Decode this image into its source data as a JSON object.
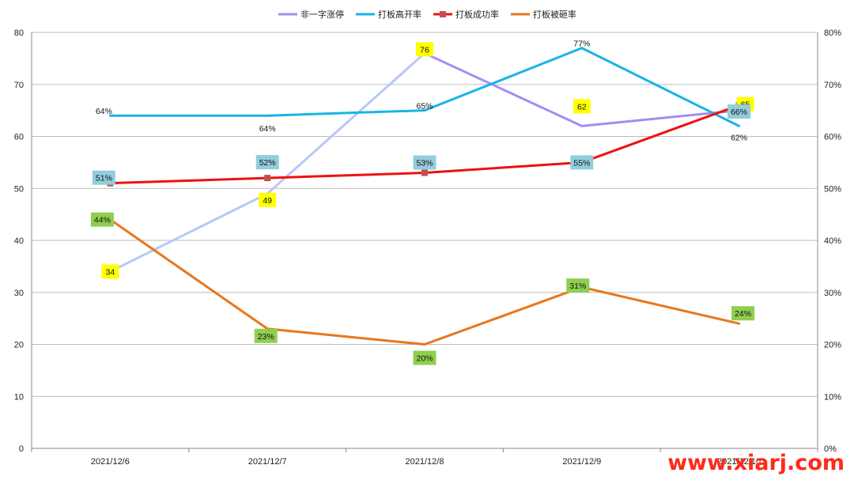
{
  "chart_data": {
    "type": "line",
    "categories": [
      "2021/12/6",
      "2021/12/7",
      "2021/12/8",
      "2021/12/9",
      "2021/12/10"
    ],
    "y_left": {
      "min": 0,
      "max": 80,
      "ticks": [
        "0",
        "10",
        "20",
        "30",
        "40",
        "50",
        "60",
        "70",
        "80"
      ]
    },
    "y_right": {
      "min": 0,
      "max": 0.8,
      "ticks": [
        "0%",
        "10%",
        "20%",
        "30%",
        "40%",
        "50%",
        "60%",
        "70%",
        "80%"
      ]
    },
    "grid": true,
    "legend_position": "top-center",
    "series": [
      {
        "name": "非一字涨停",
        "axis": "left",
        "values": [
          34,
          49,
          76,
          62,
          65
        ],
        "labels": [
          "34",
          "49",
          "76",
          "62",
          "65"
        ],
        "color": "#a58cf5",
        "color_faded": "#b6c9f6",
        "label_bg": "#ffff00",
        "marker": "none"
      },
      {
        "name": "打板高开率",
        "axis": "right",
        "values": [
          0.64,
          0.64,
          0.65,
          0.77,
          0.62
        ],
        "labels": [
          "64%",
          "64%",
          "65%",
          "77%",
          "62%"
        ],
        "color": "#19b4e6",
        "label_bg": "none",
        "marker": "none"
      },
      {
        "name": "打板成功率",
        "axis": "right",
        "values": [
          0.51,
          0.52,
          0.53,
          0.55,
          0.66
        ],
        "labels": [
          "51%",
          "52%",
          "53%",
          "55%",
          "66%"
        ],
        "color": "#ee1111",
        "marker_color": "#c0504d",
        "label_bg": "#92cddc",
        "marker": "square"
      },
      {
        "name": "打板被砸率",
        "axis": "right",
        "values": [
          0.44,
          0.23,
          0.2,
          0.31,
          0.24
        ],
        "labels": [
          "44%",
          "23%",
          "20%",
          "31%",
          "24%"
        ],
        "color": "#e8761a",
        "label_bg": "#8fcf50",
        "marker": "none"
      }
    ]
  },
  "watermark": "www.xiarj.com"
}
